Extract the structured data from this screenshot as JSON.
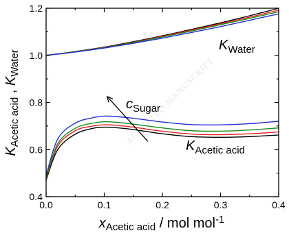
{
  "chart_data": {
    "type": "line",
    "xlim": [
      0.0,
      0.4
    ],
    "ylim": [
      0.4,
      1.2
    ],
    "x_ticks": [
      0.0,
      0.1,
      0.2,
      0.3,
      0.4
    ],
    "x_tick_labels": [
      "0.0",
      "0.1",
      "0.2",
      "0.3",
      "0.4"
    ],
    "y_ticks": [
      0.4,
      0.6,
      0.8,
      1.0,
      1.2
    ],
    "y_tick_labels": [
      "0.4",
      "0.6",
      "0.8",
      "1.0",
      "1.2"
    ],
    "xlabel": {
      "main": "x",
      "sub": "Acetic acid",
      "rest": " / mol mol",
      "sup": "-1"
    },
    "ylabel": {
      "main1": "K",
      "sub1": "Acetic acid",
      "sep": " , ",
      "main2": "K",
      "sub2": "Water"
    },
    "grid": false,
    "annotations": {
      "water": {
        "main": "K",
        "sub": "Water"
      },
      "acid": {
        "main": "K",
        "sub": "Acetic acid"
      },
      "sugar": {
        "main": "c",
        "sub": "Sugar"
      }
    },
    "watermark": "ACCEPTED MANUSCRIPT",
    "x": [
      0.0,
      0.02,
      0.05,
      0.08,
      0.1,
      0.12,
      0.15,
      0.2,
      0.25,
      0.3,
      0.35,
      0.4
    ],
    "series": [
      {
        "color": "#000000",
        "group": "acid",
        "values": [
          0.47,
          0.6,
          0.665,
          0.69,
          0.695,
          0.693,
          0.685,
          0.667,
          0.655,
          0.652,
          0.655,
          0.662
        ]
      },
      {
        "color": "#e0201c",
        "group": "acid",
        "values": [
          0.475,
          0.615,
          0.68,
          0.7,
          0.705,
          0.703,
          0.695,
          0.678,
          0.666,
          0.663,
          0.667,
          0.675
        ]
      },
      {
        "color": "#1b8a1b",
        "group": "acid",
        "values": [
          0.48,
          0.625,
          0.69,
          0.712,
          0.718,
          0.716,
          0.708,
          0.692,
          0.68,
          0.678,
          0.683,
          0.692
        ]
      },
      {
        "color": "#1f2fd6",
        "group": "acid",
        "values": [
          0.49,
          0.645,
          0.712,
          0.735,
          0.742,
          0.74,
          0.733,
          0.717,
          0.706,
          0.705,
          0.71,
          0.72
        ]
      },
      {
        "color": "#000000",
        "group": "water",
        "values": [
          1.0,
          1.006,
          1.016,
          1.027,
          1.035,
          1.044,
          1.058,
          1.083,
          1.11,
          1.138,
          1.168,
          1.2
        ]
      },
      {
        "color": "#e0201c",
        "group": "water",
        "values": [
          1.0,
          1.006,
          1.015,
          1.026,
          1.034,
          1.042,
          1.056,
          1.081,
          1.107,
          1.134,
          1.162,
          1.192
        ]
      },
      {
        "color": "#1b8a1b",
        "group": "water",
        "values": [
          1.0,
          1.006,
          1.015,
          1.025,
          1.033,
          1.041,
          1.054,
          1.078,
          1.103,
          1.13,
          1.157,
          1.185
        ]
      },
      {
        "color": "#1f2fd6",
        "group": "water",
        "values": [
          1.0,
          1.005,
          1.014,
          1.024,
          1.031,
          1.039,
          1.051,
          1.073,
          1.097,
          1.122,
          1.149,
          1.176
        ]
      }
    ],
    "arrow": {
      "from": [
        0.175,
        0.635
      ],
      "to": [
        0.105,
        0.825
      ]
    }
  }
}
